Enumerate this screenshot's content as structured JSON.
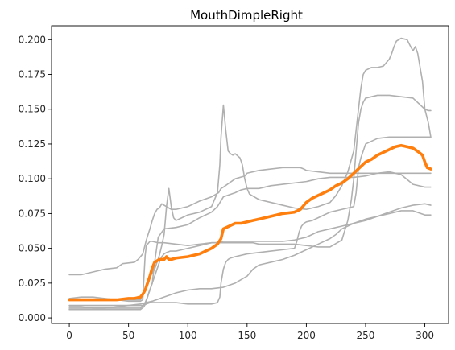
{
  "chart_data": {
    "type": "line",
    "title": "MouthDimpleRight",
    "xlabel": "",
    "ylabel": "",
    "xlim": [
      -15,
      320
    ],
    "ylim": [
      -0.004,
      0.21
    ],
    "grid": false,
    "legend": "none",
    "xticks": [
      0,
      50,
      100,
      150,
      200,
      250,
      300
    ],
    "yticks": [
      0.0,
      0.025,
      0.05,
      0.075,
      0.1,
      0.125,
      0.15,
      0.175,
      0.2
    ],
    "background_series_color": "#b0b0b0",
    "highlight_series_color": "#ff7f0e",
    "series": [
      {
        "x": [
          0,
          10,
          20,
          30,
          40,
          45,
          55,
          58,
          62,
          65,
          68,
          70,
          72,
          74,
          76,
          78,
          80,
          82,
          84,
          86,
          90,
          100,
          110,
          120,
          126,
          128,
          130,
          135,
          140,
          148,
          150,
          160,
          170,
          180,
          190,
          195,
          198,
          200,
          210,
          220,
          225,
          230,
          236,
          240,
          246,
          250,
          255,
          260,
          265,
          268,
          270,
          272,
          275,
          278,
          280,
          283,
          286,
          290,
          293,
          296,
          298,
          300,
          303,
          305
        ],
        "values": [
          0.031,
          0.031,
          0.033,
          0.035,
          0.036,
          0.039,
          0.04,
          0.042,
          0.046,
          0.056,
          0.064,
          0.07,
          0.075,
          0.078,
          0.079,
          0.082,
          0.081,
          0.08,
          0.079,
          0.078,
          0.078,
          0.08,
          0.084,
          0.087,
          0.09,
          0.093,
          0.094,
          0.097,
          0.1,
          0.102,
          0.104,
          0.106,
          0.107,
          0.108,
          0.108,
          0.108,
          0.107,
          0.106,
          0.105,
          0.104,
          0.104,
          0.104,
          0.104,
          0.104,
          0.104,
          0.104,
          0.104,
          0.104,
          0.104,
          0.104,
          0.104,
          0.104,
          0.104,
          0.104,
          0.104,
          0.104,
          0.104,
          0.104,
          0.104,
          0.104,
          0.104,
          0.104,
          0.104,
          0.104
        ]
      },
      {
        "x": [
          0,
          10,
          20,
          30,
          40,
          50,
          60,
          62,
          64,
          66,
          68,
          70,
          72,
          74,
          76,
          78,
          80,
          82,
          84,
          86,
          88,
          90,
          95,
          100,
          110,
          120,
          125,
          127,
          128,
          130,
          132,
          134,
          136,
          138,
          140,
          144,
          146,
          148,
          150,
          152,
          160,
          170,
          180,
          190,
          200,
          210,
          220,
          225,
          230,
          235,
          240,
          244,
          246,
          248,
          250,
          255,
          260,
          265,
          270,
          272,
          274,
          276,
          278,
          280,
          285,
          288,
          290,
          292,
          294,
          296,
          298,
          300,
          303,
          305
        ],
        "values": [
          0.013,
          0.013,
          0.013,
          0.013,
          0.013,
          0.013,
          0.013,
          0.016,
          0.02,
          0.025,
          0.03,
          0.032,
          0.035,
          0.04,
          0.045,
          0.052,
          0.06,
          0.08,
          0.093,
          0.08,
          0.072,
          0.07,
          0.072,
          0.074,
          0.076,
          0.08,
          0.09,
          0.11,
          0.13,
          0.153,
          0.135,
          0.12,
          0.118,
          0.117,
          0.118,
          0.115,
          0.11,
          0.1,
          0.093,
          0.089,
          0.085,
          0.083,
          0.081,
          0.079,
          0.078,
          0.08,
          0.083,
          0.088,
          0.095,
          0.105,
          0.12,
          0.15,
          0.165,
          0.175,
          0.178,
          0.18,
          0.18,
          0.181,
          0.186,
          0.19,
          0.195,
          0.199,
          0.2,
          0.201,
          0.2,
          0.195,
          0.192,
          0.195,
          0.19,
          0.18,
          0.17,
          0.15,
          0.14,
          0.13
        ]
      },
      {
        "x": [
          0,
          10,
          20,
          30,
          40,
          50,
          60,
          62,
          63,
          64,
          65,
          67,
          68,
          70,
          75,
          80,
          90,
          100,
          110,
          120,
          130,
          140,
          145,
          150,
          155,
          160,
          170,
          180,
          190,
          200,
          210,
          220,
          230,
          235,
          238,
          240,
          242,
          244,
          246,
          248,
          250,
          260,
          270,
          280,
          290,
          300,
          303,
          305
        ],
        "values": [
          0.014,
          0.015,
          0.015,
          0.014,
          0.013,
          0.012,
          0.012,
          0.013,
          0.03,
          0.045,
          0.052,
          0.054,
          0.055,
          0.055,
          0.054,
          0.054,
          0.053,
          0.052,
          0.053,
          0.054,
          0.054,
          0.054,
          0.054,
          0.054,
          0.054,
          0.053,
          0.053,
          0.053,
          0.053,
          0.052,
          0.051,
          0.051,
          0.056,
          0.07,
          0.085,
          0.1,
          0.12,
          0.14,
          0.15,
          0.155,
          0.158,
          0.16,
          0.16,
          0.159,
          0.158,
          0.15,
          0.149,
          0.149
        ]
      },
      {
        "x": [
          0,
          10,
          20,
          30,
          40,
          50,
          60,
          63,
          65,
          68,
          70,
          72,
          74,
          76,
          78,
          80,
          85,
          90,
          100,
          110,
          115,
          120,
          125,
          127,
          128,
          130,
          132,
          134,
          136,
          140,
          150,
          160,
          170,
          180,
          190,
          192,
          194,
          196,
          198,
          200,
          205,
          210,
          215,
          220,
          230,
          240,
          242,
          244,
          246,
          250,
          260,
          270,
          280,
          290,
          300,
          305
        ],
        "values": [
          0.009,
          0.009,
          0.009,
          0.009,
          0.009,
          0.009,
          0.009,
          0.009,
          0.01,
          0.011,
          0.011,
          0.011,
          0.011,
          0.011,
          0.011,
          0.011,
          0.011,
          0.011,
          0.01,
          0.01,
          0.01,
          0.01,
          0.011,
          0.015,
          0.025,
          0.035,
          0.04,
          0.042,
          0.043,
          0.044,
          0.046,
          0.047,
          0.048,
          0.049,
          0.05,
          0.055,
          0.062,
          0.066,
          0.068,
          0.069,
          0.07,
          0.072,
          0.074,
          0.076,
          0.078,
          0.08,
          0.09,
          0.108,
          0.115,
          0.125,
          0.129,
          0.13,
          0.13,
          0.13,
          0.13,
          0.13
        ]
      },
      {
        "x": [
          0,
          10,
          20,
          30,
          40,
          50,
          55,
          60,
          62,
          64,
          66,
          68,
          70,
          72,
          74,
          76,
          78,
          80,
          82,
          85,
          90,
          95,
          100,
          105,
          110,
          115,
          120,
          125,
          130,
          135,
          140,
          145,
          150,
          160,
          170,
          180,
          190,
          195,
          200,
          205,
          210,
          220,
          230,
          240,
          250,
          260,
          270,
          280,
          290,
          300,
          305
        ],
        "values": [
          0.008,
          0.008,
          0.007,
          0.007,
          0.007,
          0.007,
          0.007,
          0.007,
          0.009,
          0.011,
          0.015,
          0.02,
          0.025,
          0.03,
          0.035,
          0.04,
          0.044,
          0.046,
          0.047,
          0.048,
          0.048,
          0.049,
          0.05,
          0.051,
          0.052,
          0.053,
          0.054,
          0.054,
          0.055,
          0.055,
          0.055,
          0.055,
          0.055,
          0.055,
          0.055,
          0.055,
          0.056,
          0.057,
          0.058,
          0.06,
          0.062,
          0.064,
          0.066,
          0.068,
          0.07,
          0.073,
          0.076,
          0.079,
          0.081,
          0.082,
          0.081
        ]
      },
      {
        "x": [
          0,
          10,
          20,
          30,
          40,
          50,
          60,
          70,
          80,
          90,
          100,
          110,
          120,
          130,
          140,
          150,
          155,
          160,
          165,
          170,
          180,
          190,
          200,
          210,
          220,
          225,
          230,
          240,
          250,
          260,
          270,
          280,
          290,
          300,
          305
        ],
        "values": [
          0.007,
          0.007,
          0.007,
          0.007,
          0.008,
          0.009,
          0.01,
          0.012,
          0.015,
          0.018,
          0.02,
          0.021,
          0.021,
          0.022,
          0.025,
          0.03,
          0.035,
          0.038,
          0.039,
          0.04,
          0.042,
          0.045,
          0.049,
          0.053,
          0.057,
          0.06,
          0.064,
          0.068,
          0.071,
          0.073,
          0.075,
          0.077,
          0.077,
          0.074,
          0.074
        ]
      },
      {
        "x": [
          0,
          10,
          20,
          30,
          40,
          50,
          60,
          63,
          65,
          67,
          70,
          72,
          75,
          80,
          90,
          100,
          110,
          120,
          125,
          130,
          140,
          145,
          150,
          160,
          170,
          180,
          190,
          200,
          205,
          210,
          220,
          230,
          240,
          250,
          260,
          270,
          280,
          290,
          300,
          305
        ],
        "values": [
          0.006,
          0.006,
          0.006,
          0.006,
          0.006,
          0.006,
          0.006,
          0.008,
          0.012,
          0.018,
          0.025,
          0.04,
          0.058,
          0.064,
          0.065,
          0.067,
          0.072,
          0.076,
          0.08,
          0.087,
          0.09,
          0.092,
          0.093,
          0.093,
          0.095,
          0.096,
          0.097,
          0.098,
          0.099,
          0.1,
          0.101,
          0.101,
          0.101,
          0.102,
          0.104,
          0.105,
          0.103,
          0.096,
          0.094,
          0.094
        ]
      },
      {
        "x": [
          0,
          10,
          20,
          30,
          40,
          50,
          55,
          60,
          62,
          64,
          66,
          68,
          70,
          72,
          74,
          76,
          78,
          80,
          82,
          84,
          86,
          90,
          100,
          110,
          115,
          120,
          125,
          128,
          130,
          135,
          140,
          145,
          150,
          155,
          160,
          170,
          180,
          190,
          195,
          200,
          205,
          210,
          215,
          220,
          225,
          230,
          235,
          240,
          245,
          250,
          255,
          260,
          265,
          270,
          275,
          280,
          285,
          290,
          295,
          298,
          300,
          302,
          305
        ],
        "values": [
          0.013,
          0.013,
          0.013,
          0.013,
          0.013,
          0.014,
          0.014,
          0.015,
          0.017,
          0.02,
          0.025,
          0.03,
          0.036,
          0.04,
          0.041,
          0.042,
          0.042,
          0.042,
          0.044,
          0.042,
          0.042,
          0.043,
          0.044,
          0.046,
          0.048,
          0.05,
          0.053,
          0.057,
          0.064,
          0.066,
          0.068,
          0.068,
          0.069,
          0.07,
          0.071,
          0.073,
          0.075,
          0.076,
          0.078,
          0.083,
          0.086,
          0.088,
          0.09,
          0.092,
          0.095,
          0.097,
          0.1,
          0.104,
          0.108,
          0.112,
          0.114,
          0.117,
          0.119,
          0.121,
          0.123,
          0.124,
          0.123,
          0.122,
          0.119,
          0.117,
          0.112,
          0.108,
          0.107
        ],
        "highlight": true
      }
    ]
  }
}
